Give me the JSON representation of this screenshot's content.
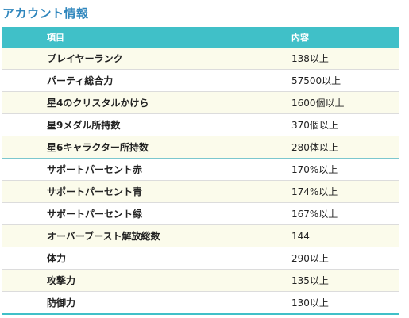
{
  "section": {
    "title": "アカウント情報"
  },
  "table": {
    "headers": {
      "item": "項目",
      "value": "内容"
    },
    "rows": [
      {
        "item": "プレイヤーランク",
        "value": "138以上"
      },
      {
        "item": "パーティ総合力",
        "value": "57500以上"
      },
      {
        "item": "星4のクリスタルかけら",
        "value": "1600個以上"
      },
      {
        "item": "星9メダル所持数",
        "value": "370個以上"
      },
      {
        "item": "星6キャラクター所持数",
        "value": "280体以上"
      },
      {
        "item": "サポートパーセント赤",
        "value": "170%以上"
      },
      {
        "item": "サポートパーセント青",
        "value": "174%以上"
      },
      {
        "item": "サポートパーセント緑",
        "value": "167%以上"
      },
      {
        "item": "オーバーブースト解放総数",
        "value": "144"
      },
      {
        "item": "体力",
        "value": "290以上"
      },
      {
        "item": "攻撃力",
        "value": "135以上"
      },
      {
        "item": "防御力",
        "value": "130以上"
      }
    ]
  }
}
